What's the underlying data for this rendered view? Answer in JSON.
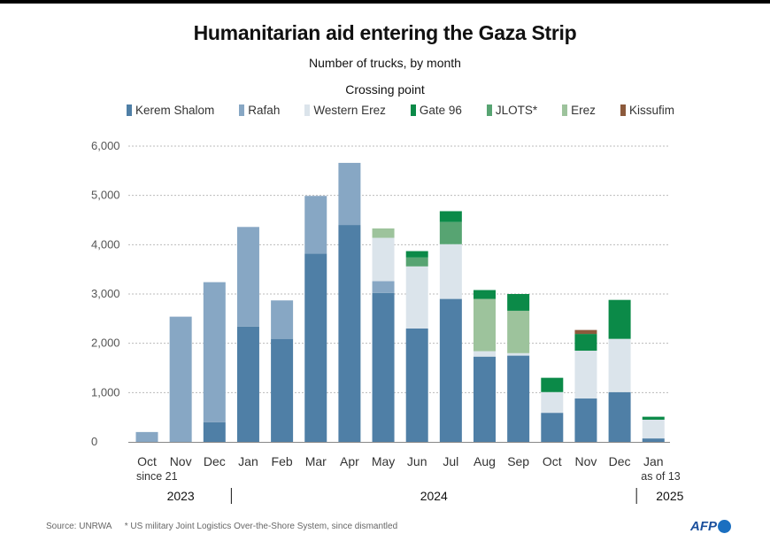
{
  "chart_data": {
    "type": "bar",
    "stacked": true,
    "title": "Humanitarian aid entering the Gaza Strip",
    "subtitle": "Number of trucks, by month",
    "legend_title": "Crossing point",
    "legend_position": "top",
    "ylim": [
      0,
      6000
    ],
    "yticks": [
      "0",
      "1,000",
      "2,000",
      "3,000",
      "4,000",
      "5,000",
      "6,000"
    ],
    "grid": true,
    "categories": [
      "Oct",
      "Nov",
      "Dec",
      "Jan",
      "Feb",
      "Mar",
      "Apr",
      "May",
      "Jun",
      "Jul",
      "Aug",
      "Sep",
      "Oct",
      "Nov",
      "Dec",
      "Jan"
    ],
    "category_notes": {
      "0": "since 21",
      "15": "as of 13"
    },
    "years": [
      {
        "label": "2023",
        "from": 0,
        "to": 2
      },
      {
        "label": "2024",
        "from": 3,
        "to": 14
      },
      {
        "label": "2025",
        "from": 15,
        "to": 15
      }
    ],
    "series": [
      {
        "name": "Kerem Shalom",
        "color": "#4f7fa6",
        "values": [
          0,
          0,
          400,
          2340,
          2090,
          3820,
          4400,
          3020,
          2300,
          2900,
          1730,
          1750,
          590,
          880,
          1010,
          70
        ]
      },
      {
        "name": "Rafah",
        "color": "#87a7c4",
        "values": [
          200,
          2540,
          2840,
          2020,
          780,
          1170,
          1260,
          240,
          0,
          0,
          0,
          0,
          0,
          0,
          0,
          0
        ]
      },
      {
        "name": "Western Erez",
        "color": "#dbe4eb",
        "values": [
          0,
          0,
          0,
          0,
          0,
          0,
          0,
          880,
          1260,
          1110,
          110,
          50,
          420,
          970,
          1080,
          380
        ]
      },
      {
        "name": "Gate 96",
        "color": "#0b8a48",
        "values": [
          0,
          0,
          0,
          0,
          0,
          0,
          0,
          0,
          130,
          220,
          180,
          340,
          290,
          340,
          790,
          60
        ]
      },
      {
        "name": "JLOTS*",
        "color": "#57a472",
        "values": [
          0,
          0,
          0,
          0,
          0,
          0,
          0,
          0,
          180,
          450,
          0,
          0,
          0,
          0,
          0,
          0
        ]
      },
      {
        "name": "Erez",
        "color": "#9dc39c",
        "values": [
          0,
          0,
          0,
          0,
          0,
          0,
          0,
          190,
          0,
          0,
          1060,
          860,
          0,
          0,
          0,
          0
        ]
      },
      {
        "name": "Kissufim",
        "color": "#8c5a3c",
        "values": [
          0,
          0,
          0,
          0,
          0,
          0,
          0,
          0,
          0,
          0,
          0,
          0,
          0,
          80,
          0,
          0
        ]
      }
    ],
    "series_order_note": "stack bottom to top: Kerem Shalom, Rafah, Western Erez, JLOTS*/Erez, Gate 96, Kissufim"
  },
  "footer": {
    "source": "Source: UNRWA",
    "note": "* US military Joint Logistics Over-the-Shore System, since dismantled",
    "logo": "AFP"
  }
}
